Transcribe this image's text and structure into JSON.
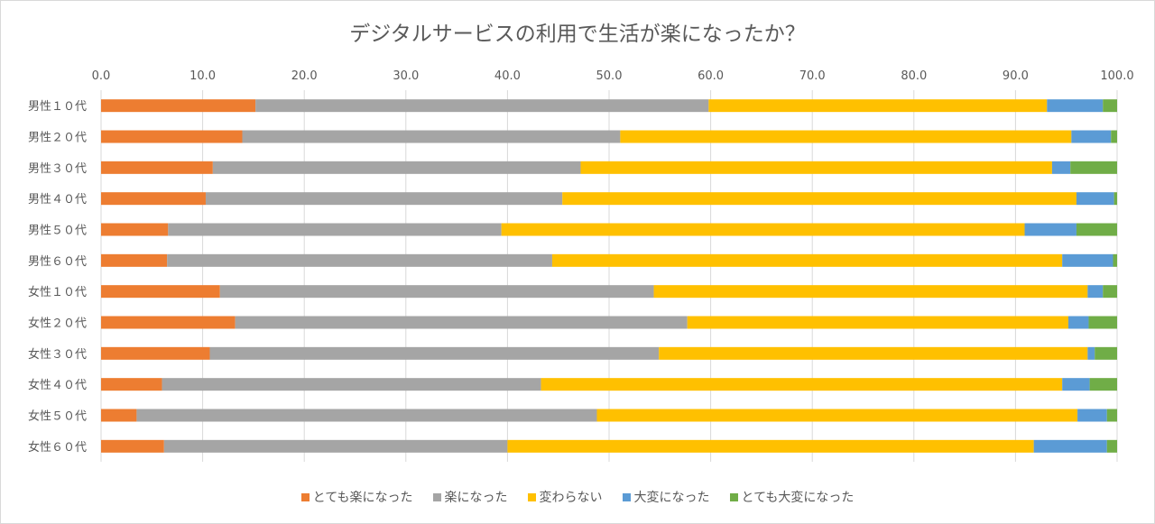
{
  "chart_data": {
    "type": "bar",
    "orientation": "horizontal",
    "stacked": true,
    "title": "デジタルサービスの利用で生活が楽になったか？",
    "xlim": [
      0,
      100
    ],
    "xticks": [
      "0.0",
      "10.0",
      "20.0",
      "30.0",
      "40.0",
      "50.0",
      "60.0",
      "70.0",
      "80.0",
      "90.0",
      "100.0"
    ],
    "grid": true,
    "legend_position": "bottom",
    "categories": [
      "男性１０代",
      "男性２０代",
      "男性３０代",
      "男性４０代",
      "男性５０代",
      "男性６０代",
      "女性１０代",
      "女性２０代",
      "女性３０代",
      "女性４０代",
      "女性５０代",
      "女性６０代"
    ],
    "series": [
      {
        "name": "とても楽になった",
        "color": "#ED7D31",
        "values": [
          15.2,
          13.9,
          11.0,
          10.3,
          6.6,
          6.5,
          11.7,
          13.2,
          10.7,
          6.0,
          3.5,
          6.2
        ]
      },
      {
        "name": "楽になった",
        "color": "#A5A5A5",
        "values": [
          44.6,
          37.2,
          36.2,
          35.1,
          32.8,
          37.9,
          42.7,
          44.5,
          44.2,
          37.3,
          45.3,
          33.8
        ]
      },
      {
        "name": "変わらない",
        "color": "#FFC000",
        "values": [
          33.3,
          44.4,
          46.4,
          50.6,
          51.5,
          50.2,
          42.7,
          37.5,
          42.2,
          51.3,
          47.3,
          51.8
        ]
      },
      {
        "name": "大変になった",
        "color": "#5B9BD5",
        "values": [
          5.5,
          3.9,
          1.8,
          3.7,
          5.1,
          5.0,
          1.5,
          2.0,
          0.7,
          2.7,
          2.9,
          7.2
        ]
      },
      {
        "name": "とても大変になった",
        "color": "#70AD47",
        "values": [
          1.4,
          0.6,
          4.6,
          0.3,
          4.0,
          0.4,
          1.4,
          2.8,
          2.2,
          2.7,
          1.0,
          1.0
        ]
      }
    ]
  }
}
